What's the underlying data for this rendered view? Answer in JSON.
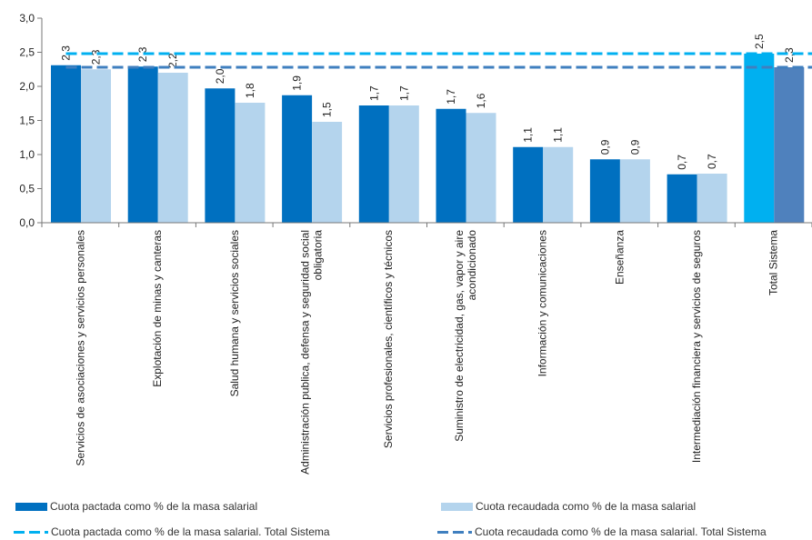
{
  "chart_data": {
    "type": "bar",
    "categories": [
      "Servicios de asociaciones y servicios personales",
      "Explotación de minas y canteras",
      "Salud humana y servicios sociales",
      "Administración publica, defensa y seguridad social obligatoria",
      "Servicios profesionales, científicos y técnicos",
      "Suministro de electricidad, gas, vapor y aire acondicionado",
      "Información y comunicaciones",
      "Enseñanza",
      "Intermediación financiera y servicios de seguros",
      "Total Sistema"
    ],
    "category_label_lines": [
      [
        "Servicios de asociaciones y servicios personales"
      ],
      [
        "Explotación de minas y canteras"
      ],
      [
        "Salud humana y servicios sociales"
      ],
      [
        "Administración publica, defensa y seguridad social",
        "obligatoria"
      ],
      [
        "Servicios profesionales, científicos y técnicos"
      ],
      [
        "Suministro de electricidad, gas, vapor y aire",
        "acondicionado"
      ],
      [
        "Información y comunicaciones"
      ],
      [
        "Enseñanza"
      ],
      [
        "Intermediación financiera y servicios de seguros"
      ],
      [
        "Total Sistema"
      ]
    ],
    "series": [
      {
        "name": "Cuota pactada como % de la masa salarial",
        "values": [
          2.31,
          2.29,
          1.97,
          1.87,
          1.72,
          1.67,
          1.11,
          0.93,
          0.71,
          2.48
        ],
        "labels": [
          "2,3",
          "2,3",
          "2,0",
          "1,9",
          "1,7",
          "1,7",
          "1,1",
          "0,9",
          "0,7",
          "2,5"
        ],
        "color": "#0070C0",
        "total_color": "#00B0F0"
      },
      {
        "name": "Cuota recaudada como % de la masa salarial",
        "values": [
          2.25,
          2.2,
          1.76,
          1.48,
          1.72,
          1.61,
          1.11,
          0.93,
          0.72,
          2.28
        ],
        "labels": [
          "2,3",
          "2,2",
          "1,8",
          "1,5",
          "1,7",
          "1,6",
          "1,1",
          "0,9",
          "0,7",
          "2,3"
        ],
        "color": "#B4D4ED",
        "total_color": "#4F81BD"
      }
    ],
    "reference_lines": [
      {
        "name": "Cuota pactada como % de la masa salarial. Total Sistema",
        "value": 2.48,
        "color": "#00B0F0",
        "style": "dashed"
      },
      {
        "name": "Cuota recaudada como % de la masa salarial. Total Sistema",
        "value": 2.28,
        "color": "#3F7FBF",
        "style": "dashed"
      }
    ],
    "yticks": [
      "0,0",
      "0,5",
      "1,0",
      "1,5",
      "2,0",
      "2,5",
      "3,0"
    ],
    "ylim": [
      0,
      3
    ],
    "grid": false,
    "legend_position": "bottom"
  }
}
